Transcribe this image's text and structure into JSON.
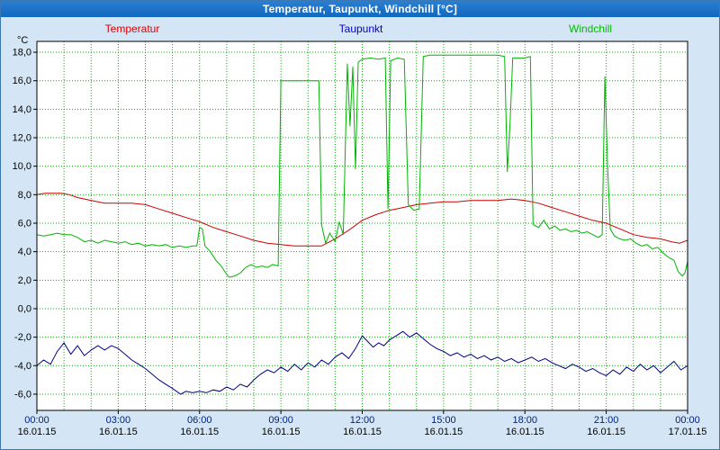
{
  "window": {
    "title": "Temperatur, Taupunkt, Windchill [°C]"
  },
  "chart_data": {
    "type": "line",
    "title": "Temperatur, Taupunkt, Windchill [°C]",
    "unit_label": "°C",
    "xlim_hours": [
      0,
      24
    ],
    "ylim": [
      -6,
      18
    ],
    "y_tick_step": 2,
    "grid": "on",
    "legend_position": "top",
    "colors": {
      "page_bg": "#d4e6f5",
      "titlebar_bg": "#1068c0",
      "titlebar_text": "#ffffff",
      "plot_bg": "#ffffff",
      "plot_border": "#000000",
      "grid": "#00b000",
      "axis_text": "#000000",
      "time_text": "#002080",
      "date_text": "#000000"
    },
    "y_ticks": [
      {
        "v": 18,
        "label": "18,0"
      },
      {
        "v": 16,
        "label": "16,0"
      },
      {
        "v": 14,
        "label": "14,0"
      },
      {
        "v": 12,
        "label": "12,0"
      },
      {
        "v": 10,
        "label": "10,0"
      },
      {
        "v": 8,
        "label": "8,0"
      },
      {
        "v": 6,
        "label": "6,0"
      },
      {
        "v": 4,
        "label": "4,0"
      },
      {
        "v": 2,
        "label": "2,0"
      },
      {
        "v": 0,
        "label": "0,0"
      },
      {
        "v": -2,
        "label": "-2,0"
      },
      {
        "v": -4,
        "label": "-4,0"
      },
      {
        "v": -6,
        "label": "-6,0"
      }
    ],
    "x_ticks": [
      {
        "hour": 0,
        "time": "00:00",
        "date": "16.01.15"
      },
      {
        "hour": 3,
        "time": "03:00",
        "date": "16.01.15"
      },
      {
        "hour": 6,
        "time": "06:00",
        "date": "16.01.15"
      },
      {
        "hour": 9,
        "time": "09:00",
        "date": "16.01.15"
      },
      {
        "hour": 12,
        "time": "12:00",
        "date": "16.01.15"
      },
      {
        "hour": 15,
        "time": "15:00",
        "date": "16.01.15"
      },
      {
        "hour": 18,
        "time": "18:00",
        "date": "16.01.15"
      },
      {
        "hour": 21,
        "time": "21:00",
        "date": "16.01.15"
      },
      {
        "hour": 24,
        "time": "00:00",
        "date": "17.01.15"
      }
    ],
    "series": [
      {
        "name": "Temperatur",
        "color": "#cc0000",
        "label_color": "#dd0000",
        "points": [
          [
            0,
            8.0
          ],
          [
            0.3,
            8.1
          ],
          [
            0.6,
            8.1
          ],
          [
            0.9,
            8.1
          ],
          [
            1.2,
            8.0
          ],
          [
            1.5,
            7.8
          ],
          [
            2,
            7.6
          ],
          [
            2.5,
            7.4
          ],
          [
            3,
            7.4
          ],
          [
            3.5,
            7.4
          ],
          [
            4,
            7.3
          ],
          [
            4.5,
            7.0
          ],
          [
            5,
            6.7
          ],
          [
            5.5,
            6.4
          ],
          [
            6,
            6.1
          ],
          [
            6.5,
            5.7
          ],
          [
            7,
            5.4
          ],
          [
            7.5,
            5.1
          ],
          [
            8,
            4.8
          ],
          [
            8.5,
            4.6
          ],
          [
            9,
            4.5
          ],
          [
            9.5,
            4.4
          ],
          [
            10,
            4.4
          ],
          [
            10.5,
            4.4
          ],
          [
            11,
            4.9
          ],
          [
            11.5,
            5.5
          ],
          [
            12,
            6.2
          ],
          [
            12.5,
            6.6
          ],
          [
            13,
            6.9
          ],
          [
            13.5,
            7.1
          ],
          [
            14,
            7.3
          ],
          [
            14.5,
            7.4
          ],
          [
            15,
            7.5
          ],
          [
            15.5,
            7.5
          ],
          [
            16,
            7.6
          ],
          [
            16.5,
            7.6
          ],
          [
            17,
            7.6
          ],
          [
            17.5,
            7.7
          ],
          [
            18,
            7.6
          ],
          [
            18.5,
            7.4
          ],
          [
            19,
            7.1
          ],
          [
            19.5,
            6.8
          ],
          [
            20,
            6.5
          ],
          [
            20.5,
            6.2
          ],
          [
            21,
            6.0
          ],
          [
            21.5,
            5.6
          ],
          [
            22,
            5.2
          ],
          [
            22.5,
            5.0
          ],
          [
            23,
            4.9
          ],
          [
            23.4,
            4.7
          ],
          [
            23.7,
            4.6
          ],
          [
            24,
            4.8
          ]
        ]
      },
      {
        "name": "Taupunkt",
        "color": "#000080",
        "label_color": "#0000cc",
        "points": [
          [
            0,
            -4.0
          ],
          [
            0.25,
            -3.6
          ],
          [
            0.5,
            -3.9
          ],
          [
            0.75,
            -3.0
          ],
          [
            1,
            -2.4
          ],
          [
            1.25,
            -3.2
          ],
          [
            1.5,
            -2.6
          ],
          [
            1.75,
            -3.3
          ],
          [
            2,
            -2.9
          ],
          [
            2.25,
            -2.6
          ],
          [
            2.5,
            -2.9
          ],
          [
            2.75,
            -2.6
          ],
          [
            3,
            -2.8
          ],
          [
            3.25,
            -3.2
          ],
          [
            3.5,
            -3.6
          ],
          [
            3.75,
            -3.9
          ],
          [
            4,
            -4.2
          ],
          [
            4.25,
            -4.6
          ],
          [
            4.5,
            -5.0
          ],
          [
            4.75,
            -5.3
          ],
          [
            5,
            -5.6
          ],
          [
            5.3,
            -6.0
          ],
          [
            5.5,
            -5.8
          ],
          [
            5.75,
            -5.9
          ],
          [
            6,
            -5.8
          ],
          [
            6.25,
            -5.9
          ],
          [
            6.5,
            -5.7
          ],
          [
            6.75,
            -5.8
          ],
          [
            7,
            -5.5
          ],
          [
            7.25,
            -5.7
          ],
          [
            7.5,
            -5.3
          ],
          [
            7.75,
            -5.5
          ],
          [
            8,
            -5.0
          ],
          [
            8.25,
            -4.6
          ],
          [
            8.5,
            -4.3
          ],
          [
            8.75,
            -4.5
          ],
          [
            9,
            -4.1
          ],
          [
            9.25,
            -4.4
          ],
          [
            9.5,
            -3.9
          ],
          [
            9.75,
            -4.3
          ],
          [
            10,
            -3.8
          ],
          [
            10.25,
            -4.1
          ],
          [
            10.5,
            -3.6
          ],
          [
            10.75,
            -3.9
          ],
          [
            11,
            -3.4
          ],
          [
            11.25,
            -3.1
          ],
          [
            11.5,
            -3.5
          ],
          [
            11.75,
            -2.8
          ],
          [
            12,
            -1.9
          ],
          [
            12.2,
            -2.3
          ],
          [
            12.4,
            -2.7
          ],
          [
            12.6,
            -2.4
          ],
          [
            12.8,
            -2.6
          ],
          [
            13,
            -2.2
          ],
          [
            13.25,
            -1.9
          ],
          [
            13.5,
            -1.6
          ],
          [
            13.75,
            -2.0
          ],
          [
            14,
            -1.7
          ],
          [
            14.25,
            -2.1
          ],
          [
            14.5,
            -2.5
          ],
          [
            14.75,
            -2.8
          ],
          [
            15,
            -3.0
          ],
          [
            15.25,
            -3.3
          ],
          [
            15.5,
            -3.1
          ],
          [
            15.75,
            -3.4
          ],
          [
            16,
            -3.2
          ],
          [
            16.25,
            -3.5
          ],
          [
            16.5,
            -3.3
          ],
          [
            16.75,
            -3.6
          ],
          [
            17,
            -3.4
          ],
          [
            17.25,
            -3.7
          ],
          [
            17.5,
            -3.5
          ],
          [
            17.75,
            -3.8
          ],
          [
            18,
            -3.6
          ],
          [
            18.25,
            -3.4
          ],
          [
            18.5,
            -3.7
          ],
          [
            18.75,
            -3.5
          ],
          [
            19,
            -3.8
          ],
          [
            19.25,
            -4.0
          ],
          [
            19.5,
            -4.2
          ],
          [
            19.75,
            -3.9
          ],
          [
            20,
            -4.1
          ],
          [
            20.25,
            -4.4
          ],
          [
            20.5,
            -4.2
          ],
          [
            20.75,
            -4.5
          ],
          [
            21,
            -4.7
          ],
          [
            21.25,
            -4.3
          ],
          [
            21.5,
            -4.6
          ],
          [
            21.75,
            -4.1
          ],
          [
            22,
            -4.4
          ],
          [
            22.25,
            -3.9
          ],
          [
            22.5,
            -4.3
          ],
          [
            22.75,
            -4.0
          ],
          [
            23,
            -4.5
          ],
          [
            23.25,
            -4.1
          ],
          [
            23.5,
            -3.7
          ],
          [
            23.75,
            -4.3
          ],
          [
            24,
            -4.0
          ]
        ]
      },
      {
        "name": "Windchill",
        "color": "#00b400",
        "label_color": "#00bb00",
        "points": [
          [
            0,
            5.2
          ],
          [
            0.25,
            5.1
          ],
          [
            0.5,
            5.2
          ],
          [
            0.75,
            5.3
          ],
          [
            1,
            5.2
          ],
          [
            1.25,
            5.2
          ],
          [
            1.5,
            5.0
          ],
          [
            1.75,
            4.7
          ],
          [
            2,
            4.8
          ],
          [
            2.25,
            4.6
          ],
          [
            2.5,
            4.8
          ],
          [
            2.75,
            4.7
          ],
          [
            3,
            4.6
          ],
          [
            3.25,
            4.7
          ],
          [
            3.5,
            4.5
          ],
          [
            3.75,
            4.6
          ],
          [
            4,
            4.4
          ],
          [
            4.25,
            4.5
          ],
          [
            4.5,
            4.4
          ],
          [
            4.75,
            4.5
          ],
          [
            5,
            4.3
          ],
          [
            5.25,
            4.4
          ],
          [
            5.5,
            4.3
          ],
          [
            5.75,
            4.4
          ],
          [
            5.9,
            4.4
          ],
          [
            6,
            5.7
          ],
          [
            6.1,
            5.6
          ],
          [
            6.2,
            4.4
          ],
          [
            6.4,
            4.0
          ],
          [
            6.6,
            3.4
          ],
          [
            6.8,
            3.0
          ],
          [
            7,
            2.4
          ],
          [
            7.1,
            2.2
          ],
          [
            7.3,
            2.3
          ],
          [
            7.5,
            2.5
          ],
          [
            7.7,
            2.9
          ],
          [
            7.9,
            3.1
          ],
          [
            8.1,
            2.9
          ],
          [
            8.3,
            3.0
          ],
          [
            8.5,
            2.9
          ],
          [
            8.7,
            3.1
          ],
          [
            8.9,
            3.0
          ],
          [
            9,
            16.0
          ],
          [
            9.5,
            16.0
          ],
          [
            10,
            16.0
          ],
          [
            10.4,
            16.0
          ],
          [
            10.5,
            5.9
          ],
          [
            10.65,
            4.6
          ],
          [
            10.8,
            5.3
          ],
          [
            11,
            4.7
          ],
          [
            11.15,
            6.1
          ],
          [
            11.3,
            5.2
          ],
          [
            11.45,
            17.2
          ],
          [
            11.55,
            12.8
          ],
          [
            11.65,
            17.0
          ],
          [
            11.75,
            9.8
          ],
          [
            11.85,
            17.3
          ],
          [
            12,
            17.5
          ],
          [
            12.3,
            17.6
          ],
          [
            12.6,
            17.5
          ],
          [
            12.85,
            17.6
          ],
          [
            12.95,
            7.0
          ],
          [
            13.05,
            17.4
          ],
          [
            13.3,
            17.6
          ],
          [
            13.55,
            17.5
          ],
          [
            13.7,
            7.3
          ],
          [
            13.9,
            6.9
          ],
          [
            14.1,
            7.0
          ],
          [
            14.25,
            17.7
          ],
          [
            14.5,
            17.8
          ],
          [
            15,
            17.8
          ],
          [
            15.5,
            17.8
          ],
          [
            16,
            17.8
          ],
          [
            16.5,
            17.8
          ],
          [
            17,
            17.8
          ],
          [
            17.25,
            17.7
          ],
          [
            17.35,
            9.6
          ],
          [
            17.45,
            13.0
          ],
          [
            17.55,
            17.6
          ],
          [
            17.8,
            17.6
          ],
          [
            18,
            17.6
          ],
          [
            18.2,
            17.7
          ],
          [
            18.3,
            5.9
          ],
          [
            18.5,
            5.7
          ],
          [
            18.7,
            6.2
          ],
          [
            18.9,
            5.6
          ],
          [
            19.1,
            5.8
          ],
          [
            19.3,
            5.5
          ],
          [
            19.5,
            5.6
          ],
          [
            19.7,
            5.4
          ],
          [
            19.9,
            5.5
          ],
          [
            20.1,
            5.3
          ],
          [
            20.3,
            5.4
          ],
          [
            20.5,
            5.2
          ],
          [
            20.7,
            5.0
          ],
          [
            20.85,
            5.2
          ],
          [
            20.95,
            16.3
          ],
          [
            21.05,
            10.0
          ],
          [
            21.15,
            5.6
          ],
          [
            21.3,
            5.1
          ],
          [
            21.5,
            4.9
          ],
          [
            21.7,
            4.8
          ],
          [
            21.9,
            4.9
          ],
          [
            22.1,
            4.6
          ],
          [
            22.3,
            4.4
          ],
          [
            22.5,
            4.5
          ],
          [
            22.7,
            4.2
          ],
          [
            22.9,
            4.3
          ],
          [
            23.1,
            3.9
          ],
          [
            23.3,
            3.6
          ],
          [
            23.5,
            3.4
          ],
          [
            23.65,
            2.6
          ],
          [
            23.8,
            2.3
          ],
          [
            23.9,
            2.5
          ],
          [
            24,
            3.3
          ]
        ]
      }
    ]
  }
}
